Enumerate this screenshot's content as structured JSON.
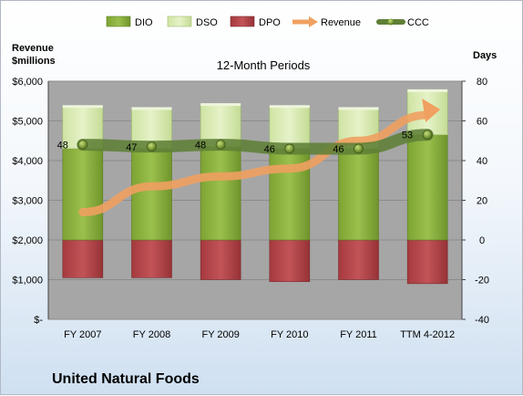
{
  "chart_data": {
    "type": "bar",
    "title": "12-Month Periods",
    "company": "United Natural Foods",
    "left_axis_label": [
      "Revenue",
      "$millions"
    ],
    "right_axis_label": "Days",
    "categories": [
      "FY 2007",
      "FY 2008",
      "FY 2009",
      "FY 2010",
      "FY 2011",
      "TTM 4-2012"
    ],
    "left_axis": {
      "ticks": [
        "$-",
        "$1,000",
        "$2,000",
        "$3,000",
        "$4,000",
        "$5,000",
        "$6,000"
      ],
      "range": [
        0,
        6000
      ]
    },
    "right_axis": {
      "ticks": [
        "-40",
        "-20",
        "0",
        "20",
        "40",
        "60",
        "80"
      ],
      "range": [
        -40,
        80
      ]
    },
    "legend": {
      "position": "top",
      "entries": [
        "DIO",
        "DSO",
        "DPO",
        "Revenue",
        "CCC"
      ]
    },
    "series": [
      {
        "name": "DIO",
        "axis": "right",
        "values": [
          46,
          46,
          47,
          46,
          46,
          53
        ]
      },
      {
        "name": "DSO",
        "axis": "right",
        "values": [
          21,
          20,
          21,
          21,
          20,
          22
        ]
      },
      {
        "name": "DPO",
        "axis": "right",
        "values": [
          -19,
          -19,
          -20,
          -21,
          -20,
          -22
        ]
      },
      {
        "name": "Revenue",
        "axis": "left",
        "values": [
          2700,
          3350,
          3600,
          3800,
          4500,
          5150
        ]
      },
      {
        "name": "CCC",
        "axis": "right",
        "values": [
          48,
          47,
          48,
          46,
          46,
          53
        ]
      }
    ],
    "ccc_labels": [
      "48",
      "47",
      "48",
      "46",
      "46",
      "53"
    ],
    "colors": {
      "DIO": "#8db33f",
      "DSO": "#d8eab0",
      "DPO": "#b8464a",
      "Revenue": "#f0a060",
      "CCC": "#5f7f37",
      "plot_background": "#a6a6a6"
    }
  }
}
